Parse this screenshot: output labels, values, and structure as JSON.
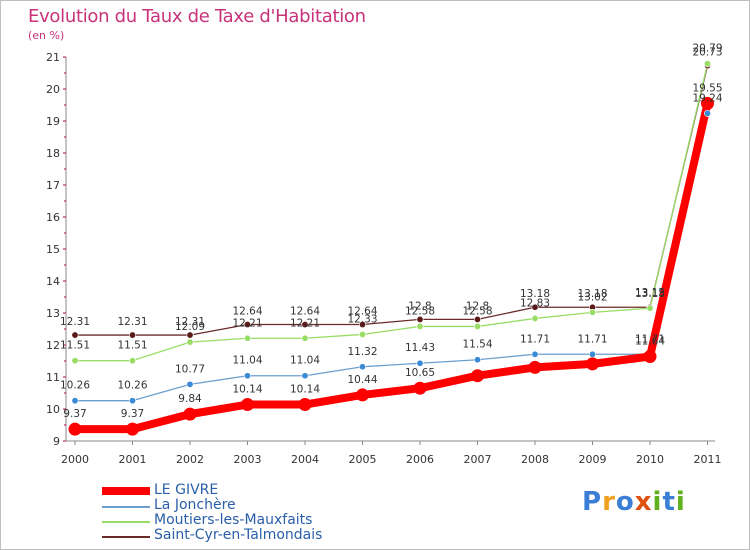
{
  "title": "Evolution du Taux de Taxe d'Habitation",
  "unit": "(en %)",
  "logo": {
    "text": "Proxiti",
    "letters": [
      "P",
      "r",
      "o",
      "x",
      "i",
      "t",
      "i"
    ],
    "colors": [
      "#3a7fd5",
      "#f0a020",
      "#3a7fd5",
      "#e05010",
      "#60b020",
      "#3a7fd5",
      "#60b020"
    ]
  },
  "chart_data": {
    "type": "line",
    "x": [
      "2000",
      "2001",
      "2002",
      "2003",
      "2004",
      "2005",
      "2006",
      "2007",
      "2008",
      "2009",
      "2010",
      "2011"
    ],
    "yticks": [
      "9",
      "10",
      "11",
      "12",
      "13",
      "14",
      "15",
      "16",
      "17",
      "18",
      "19",
      "20",
      "21"
    ],
    "ylim": [
      9,
      21
    ],
    "grid": false,
    "legend_position": "bottom-left",
    "series": [
      {
        "name": "LE GIVRE",
        "color": "#ff0000",
        "values": [
          9.37,
          9.37,
          9.84,
          10.14,
          10.14,
          10.44,
          10.65,
          11.04,
          11.3,
          11.41,
          11.64,
          19.55
        ],
        "labels": [
          "9.37",
          "9.37",
          "9.84",
          "10.14",
          "10.14",
          "10.44",
          "10.65",
          "",
          "",
          "",
          "11.64",
          "19.55"
        ]
      },
      {
        "name": "La Jonchère",
        "color": "#6b9fcf",
        "values": [
          10.26,
          10.26,
          10.77,
          11.04,
          11.04,
          11.32,
          11.43,
          11.54,
          11.71,
          11.71,
          11.71,
          19.24
        ],
        "labels": [
          "10.26",
          "10.26",
          "10.77",
          "11.04",
          "11.04",
          "11.32",
          "11.43",
          "11.54",
          "11.71",
          "11.71",
          "11.71",
          "19.24"
        ]
      },
      {
        "name": "Moutiers-les-Mauxfaits",
        "color": "#99dd66",
        "values": [
          11.51,
          11.51,
          12.09,
          12.21,
          12.21,
          12.33,
          12.58,
          12.58,
          12.83,
          13.02,
          13.15,
          20.79
        ],
        "labels": [
          "11.51",
          "11.51",
          "12.09",
          "12.21",
          "12.21",
          "12.33",
          "12.58",
          "12.58",
          "12.83",
          "13.02",
          "13.15",
          "20.79"
        ]
      },
      {
        "name": "Saint-Cyr-en-Talmondais",
        "color": "#6b2a2a",
        "values": [
          12.31,
          12.31,
          12.31,
          12.64,
          12.64,
          12.64,
          12.8,
          12.8,
          13.18,
          13.18,
          13.18,
          20.73
        ],
        "labels": [
          "12.31",
          "12.31",
          "12.31",
          "12.64",
          "12.64",
          "12.64",
          "12.8",
          "12.8",
          "13.18",
          "13.18",
          "13.18",
          "20.73"
        ]
      }
    ]
  }
}
